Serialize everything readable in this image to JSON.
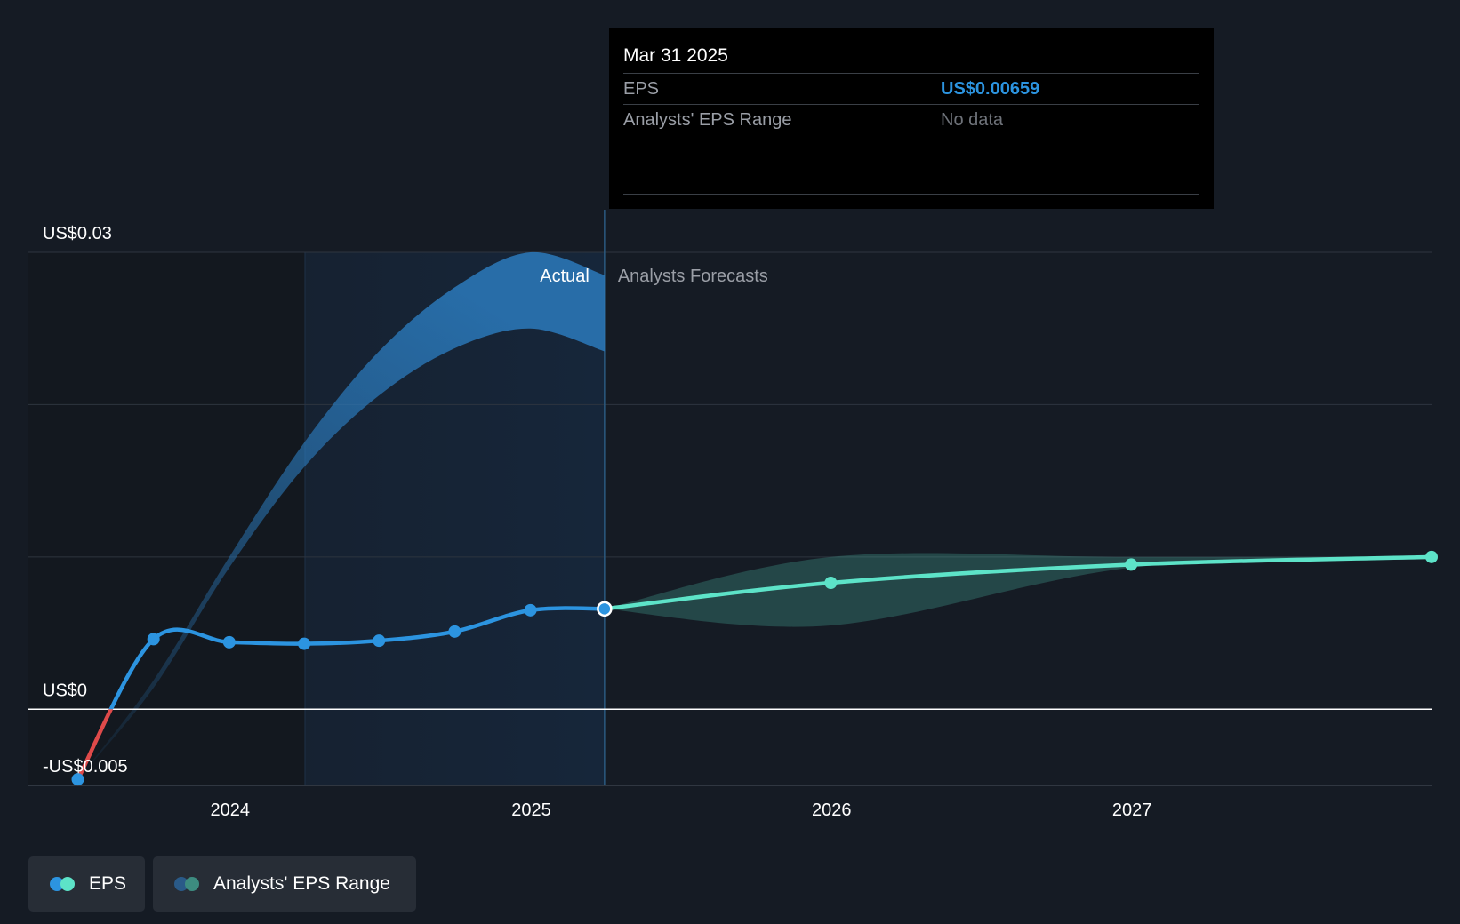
{
  "chart_data": {
    "type": "line",
    "y_axis": {
      "tick_labels": [
        "US$0.03",
        "US$0",
        "-US$0.005"
      ],
      "ticks": [
        0.03,
        0,
        -0.005
      ],
      "gridlines": [
        0.03,
        0.02,
        0.01,
        0
      ],
      "ylim": [
        -0.005,
        0.03
      ]
    },
    "x_axis": {
      "tick_labels": [
        "2024",
        "2025",
        "2026",
        "2027"
      ],
      "ticks": [
        "2024-01-01",
        "2025-01-01",
        "2026-01-01",
        "2027-01-01"
      ],
      "xlim": [
        "2023-05-01",
        "2027-12-31"
      ]
    },
    "sections": {
      "actual_label": "Actual",
      "forecast_label": "Analysts Forecasts",
      "divider_date": "2025-03-31",
      "highlight_start": "2024-04-01"
    },
    "series": [
      {
        "name": "EPS",
        "kind": "actual",
        "color_negative": "#e04a4a",
        "color": "#2c94e0",
        "points": [
          {
            "x": "2023-06-30",
            "y": -0.0046
          },
          {
            "x": "2023-09-30",
            "y": 0.0046
          },
          {
            "x": "2023-12-31",
            "y": 0.0044
          },
          {
            "x": "2024-03-31",
            "y": 0.0043
          },
          {
            "x": "2024-06-30",
            "y": 0.0045
          },
          {
            "x": "2024-09-30",
            "y": 0.0051
          },
          {
            "x": "2024-12-31",
            "y": 0.0065
          },
          {
            "x": "2025-03-31",
            "y": 0.00659
          }
        ]
      },
      {
        "name": "EPS",
        "kind": "forecast",
        "color": "#5de3c8",
        "points": [
          {
            "x": "2025-03-31",
            "y": 0.00659
          },
          {
            "x": "2025-12-31",
            "y": 0.0083
          },
          {
            "x": "2026-12-31",
            "y": 0.0095
          },
          {
            "x": "2027-12-31",
            "y": 0.01
          }
        ]
      }
    ],
    "ranges": [
      {
        "name": "Analysts' EPS Range",
        "kind": "past",
        "color": "#2c7fc4",
        "upper": [
          {
            "x": "2023-06-30",
            "y": -0.0046
          },
          {
            "x": "2023-09-30",
            "y": 0.0019
          },
          {
            "x": "2023-12-31",
            "y": 0.01
          },
          {
            "x": "2024-03-31",
            "y": 0.0175
          },
          {
            "x": "2024-06-30",
            "y": 0.0235
          },
          {
            "x": "2024-09-30",
            "y": 0.0277
          },
          {
            "x": "2024-12-31",
            "y": 0.03
          },
          {
            "x": "2025-03-31",
            "y": 0.0285
          }
        ],
        "lower": [
          {
            "x": "2023-06-30",
            "y": -0.0046
          },
          {
            "x": "2023-09-30",
            "y": 0.0014
          },
          {
            "x": "2023-12-31",
            "y": 0.0093
          },
          {
            "x": "2024-03-31",
            "y": 0.0159
          },
          {
            "x": "2024-06-30",
            "y": 0.0206
          },
          {
            "x": "2024-09-30",
            "y": 0.0237
          },
          {
            "x": "2024-12-31",
            "y": 0.025
          },
          {
            "x": "2025-03-31",
            "y": 0.0235
          }
        ]
      },
      {
        "name": "Analysts' EPS Range",
        "kind": "forecast",
        "color": "#5de3c8",
        "upper": [
          {
            "x": "2025-03-31",
            "y": 0.00659
          },
          {
            "x": "2025-12-31",
            "y": 0.01
          },
          {
            "x": "2026-12-31",
            "y": 0.01
          },
          {
            "x": "2027-12-31",
            "y": 0.01
          }
        ],
        "lower": [
          {
            "x": "2025-03-31",
            "y": 0.00659
          },
          {
            "x": "2025-12-31",
            "y": 0.0055
          },
          {
            "x": "2026-12-31",
            "y": 0.0093
          },
          {
            "x": "2027-12-31",
            "y": 0.01
          }
        ]
      }
    ],
    "tooltip": {
      "date": "Mar 31 2025",
      "rows": [
        {
          "label": "EPS",
          "value": "US$0.00659"
        },
        {
          "label": "Analysts' EPS Range",
          "value": "No data"
        }
      ]
    }
  },
  "legend": {
    "items": [
      {
        "label": "EPS",
        "colors": [
          "#2c94e0",
          "#5de3c8"
        ]
      },
      {
        "label": "Analysts' EPS Range",
        "colors": [
          "#2a5a88",
          "#3d8c80"
        ]
      }
    ]
  },
  "colors": {
    "background": "#151b24",
    "gridline": "#2e353f",
    "zero_line": "#ffffff",
    "highlight_band": "#16263a",
    "shade": "#13181f",
    "divider": "#2b5a80"
  }
}
